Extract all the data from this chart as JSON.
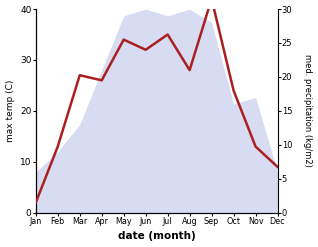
{
  "months": [
    "Jan",
    "Feb",
    "Mar",
    "Apr",
    "May",
    "Jun",
    "Jul",
    "Aug",
    "Sep",
    "Oct",
    "Nov",
    "Dec"
  ],
  "temp_max": [
    2,
    13,
    27,
    26,
    34,
    32,
    35,
    28,
    42,
    24,
    13,
    9
  ],
  "precip": [
    6,
    9,
    13,
    21,
    29,
    30,
    29,
    30,
    28,
    16,
    17,
    6
  ],
  "temp_color": "#aa2020",
  "precip_fill_color": "#b8c0e8",
  "ylabel_left": "max temp (C)",
  "ylabel_right": "med. precipitation (kg/m2)",
  "xlabel": "date (month)",
  "ylim_left": [
    0,
    40
  ],
  "ylim_right": [
    0,
    30
  ],
  "yticks_left": [
    0,
    10,
    20,
    30,
    40
  ],
  "yticks_right": [
    0,
    5,
    10,
    15,
    20,
    25,
    30
  ],
  "background_color": "#ffffff",
  "line_width": 1.8
}
